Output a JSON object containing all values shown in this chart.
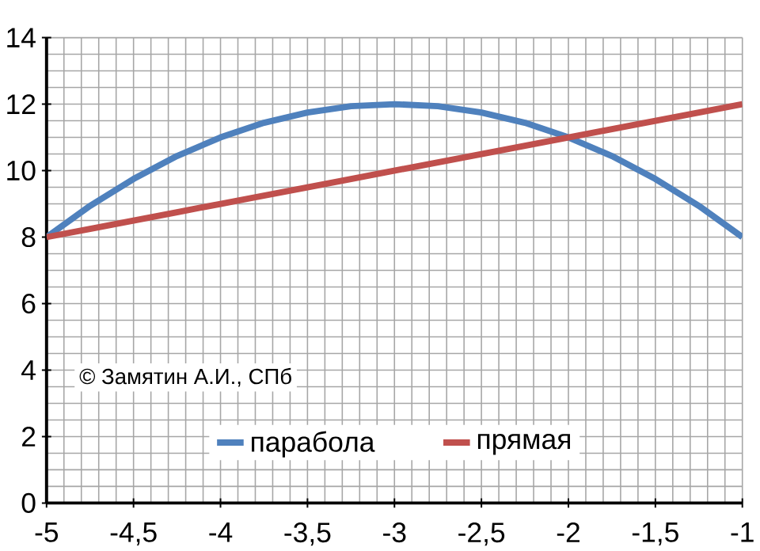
{
  "chart_data": {
    "type": "line",
    "x": [
      -5,
      -4.75,
      -4.5,
      -4.25,
      -4,
      -3.75,
      -3.5,
      -3.25,
      -3,
      -2.75,
      -2.5,
      -2.25,
      -2,
      -1.75,
      -1.5,
      -1.25,
      -1
    ],
    "series": [
      {
        "name": "парабола",
        "color": "#4f81bd",
        "values": [
          8,
          8.94,
          9.75,
          10.44,
          11,
          11.44,
          11.75,
          11.94,
          12,
          11.94,
          11.75,
          11.44,
          11,
          10.44,
          9.75,
          8.94,
          8
        ]
      },
      {
        "name": "прямая",
        "color": "#c0504d",
        "values": [
          8,
          8.25,
          8.5,
          8.75,
          9,
          9.25,
          9.5,
          9.75,
          10,
          10.25,
          10.5,
          10.75,
          11,
          11.25,
          11.5,
          11.75,
          12
        ]
      }
    ],
    "xlim": [
      -5,
      -1
    ],
    "ylim": [
      0,
      14
    ],
    "xticks": [
      -5,
      {
        "value": -4.5,
        "label": "-4,5"
      },
      -4,
      {
        "value": -3.5,
        "label": "-3,5"
      },
      -3,
      {
        "value": -2.5,
        "label": "-2,5"
      },
      -2,
      {
        "value": -1.5,
        "label": "-1,5"
      },
      -1
    ],
    "yticks": [
      0,
      2,
      4,
      6,
      8,
      10,
      12,
      14
    ],
    "grid": true,
    "legend": "bottom",
    "marker": "none",
    "line_style": "solid",
    "annotations": [
      "© Замятин А.И., СПб"
    ]
  }
}
